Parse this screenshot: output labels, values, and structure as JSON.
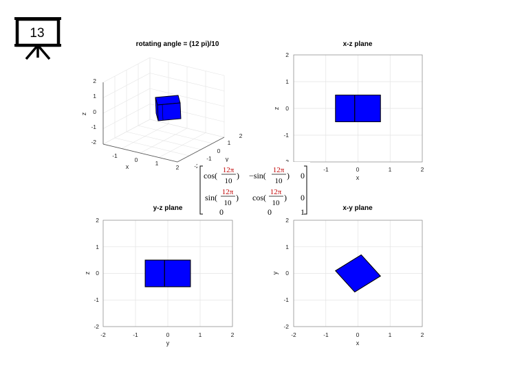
{
  "slide": {
    "number": "13",
    "icon": "presentation-board-icon"
  },
  "colors": {
    "cube_face": "#0000ff",
    "cube_edge": "#000000",
    "grid": "#e3e3e3",
    "frame": "#888888"
  },
  "plots": {
    "p3d": {
      "title": "rotating angle = (12 pi)/10",
      "xlabel": "x",
      "ylabel": "y",
      "zlabel": "z",
      "xticks": [
        "-1",
        "0",
        "1",
        "2"
      ],
      "yticks": [
        "-2",
        "-1",
        "0",
        "1",
        "2"
      ],
      "zticks": [
        "2",
        "1",
        "0",
        "-1",
        "-2"
      ],
      "xlim": [
        -2,
        2
      ],
      "ylim": [
        -2,
        2
      ],
      "zlim": [
        -2,
        2
      ]
    },
    "xz": {
      "title": "x-z plane",
      "xlabel": "x",
      "ylabel": "z",
      "xticks": [
        "-1",
        "0",
        "1",
        "2"
      ],
      "yticks": [
        "2",
        "1",
        "0",
        "-1",
        "-2"
      ],
      "xlim": [
        -2,
        2
      ],
      "ylim": [
        -2,
        2
      ]
    },
    "yz": {
      "title": "y-z plane",
      "xlabel": "y",
      "ylabel": "z",
      "xticks": [
        "-2",
        "-1",
        "0",
        "1",
        "2"
      ],
      "yticks": [
        "2",
        "1",
        "0",
        "-1",
        "-2"
      ],
      "xlim": [
        -2,
        2
      ],
      "ylim": [
        -2,
        2
      ]
    },
    "xy": {
      "title": "x-y plane",
      "xlabel": "x",
      "ylabel": "y",
      "xticks": [
        "-2",
        "-1",
        "0",
        "1",
        "2"
      ],
      "yticks": [
        "2",
        "1",
        "0",
        "-1",
        "-2"
      ],
      "xlim": [
        -2,
        2
      ],
      "ylim": [
        -2,
        2
      ]
    }
  },
  "matrix": {
    "num": "12π",
    "den": "10",
    "r1": {
      "c1_fn": "cos(",
      "c2_fn": "−sin(",
      "c3": "0"
    },
    "r2": {
      "c1_fn": "sin(",
      "c2_fn": "cos(",
      "c3": "0"
    },
    "r3": {
      "c1": "0",
      "c2": "0",
      "c3": "1"
    },
    "close": ")"
  },
  "chart_data": [
    {
      "type": "scatter",
      "title": "x-z plane",
      "polygons": [
        {
          "name": "left face",
          "x": [
            -0.7,
            -0.1,
            -0.1,
            -0.7
          ],
          "y": [
            0.5,
            0.5,
            -0.5,
            -0.5
          ]
        },
        {
          "name": "right face",
          "x": [
            -0.1,
            0.7,
            0.7,
            -0.1
          ],
          "y": [
            0.5,
            0.5,
            -0.5,
            -0.5
          ]
        }
      ],
      "xlabel": "x",
      "ylabel": "z",
      "xlim": [
        -2,
        2
      ],
      "ylim": [
        -2,
        2
      ]
    },
    {
      "type": "scatter",
      "title": "y-z plane",
      "polygons": [
        {
          "name": "left face",
          "x": [
            -0.7,
            -0.1,
            -0.1,
            -0.7
          ],
          "y": [
            0.5,
            0.5,
            -0.5,
            -0.5
          ]
        },
        {
          "name": "right face",
          "x": [
            -0.1,
            0.7,
            0.7,
            -0.1
          ],
          "y": [
            0.5,
            0.5,
            -0.5,
            -0.5
          ]
        }
      ],
      "xlabel": "y",
      "ylabel": "z",
      "xlim": [
        -2,
        2
      ],
      "ylim": [
        -2,
        2
      ]
    },
    {
      "type": "scatter",
      "title": "x-y plane",
      "polygons": [
        {
          "name": "rotated square",
          "x": [
            -0.7,
            0.1,
            0.7,
            -0.1
          ],
          "y": [
            0.1,
            0.7,
            -0.1,
            -0.7
          ]
        }
      ],
      "xlabel": "x",
      "ylabel": "y",
      "xlim": [
        -2,
        2
      ],
      "ylim": [
        -2,
        2
      ]
    }
  ]
}
